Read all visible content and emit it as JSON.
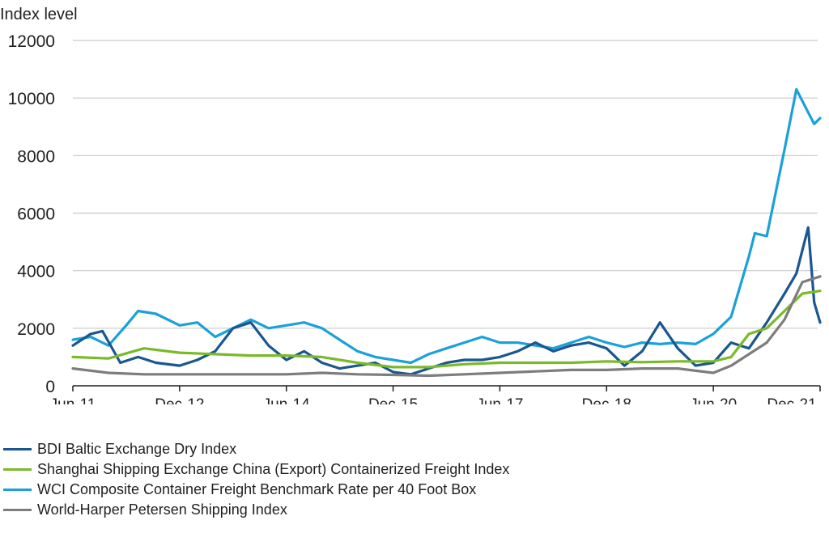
{
  "chart_data": {
    "type": "line",
    "ylabel": "Index level",
    "ylim": [
      0,
      12000
    ],
    "yticks": [
      0,
      2000,
      4000,
      6000,
      8000,
      10000,
      12000
    ],
    "x_range": [
      "2011-06",
      "2021-12"
    ],
    "x_ticks": [
      {
        "label": "Jun-11",
        "date": "2011-06"
      },
      {
        "label": "Dec-12",
        "date": "2012-12"
      },
      {
        "label": "Jun-14",
        "date": "2014-06"
      },
      {
        "label": "Dec-15",
        "date": "2015-12"
      },
      {
        "label": "Jun-17",
        "date": "2017-06"
      },
      {
        "label": "Dec-18",
        "date": "2018-12"
      },
      {
        "label": "Jun-20",
        "date": "2020-06"
      },
      {
        "label": "Dec-21",
        "date": "2021-12"
      }
    ],
    "gridlines": "horizontal",
    "legend_position": "bottom",
    "series": [
      {
        "name": "WCI Composite Container Freight Benchmark Rate per 40 Foot Box",
        "color": "#1ba1d8",
        "points": [
          [
            "2011-06",
            1600
          ],
          [
            "2011-09",
            1700
          ],
          [
            "2011-12",
            1400
          ],
          [
            "2012-03",
            2100
          ],
          [
            "2012-05",
            2600
          ],
          [
            "2012-08",
            2500
          ],
          [
            "2012-12",
            2100
          ],
          [
            "2013-03",
            2200
          ],
          [
            "2013-06",
            1700
          ],
          [
            "2013-09",
            2000
          ],
          [
            "2013-12",
            2300
          ],
          [
            "2014-03",
            2000
          ],
          [
            "2014-06",
            2100
          ],
          [
            "2014-09",
            2200
          ],
          [
            "2014-12",
            2000
          ],
          [
            "2015-03",
            1600
          ],
          [
            "2015-06",
            1200
          ],
          [
            "2015-09",
            1000
          ],
          [
            "2015-12",
            900
          ],
          [
            "2016-03",
            800
          ],
          [
            "2016-06",
            1100
          ],
          [
            "2016-09",
            1300
          ],
          [
            "2016-12",
            1500
          ],
          [
            "2017-03",
            1700
          ],
          [
            "2017-06",
            1500
          ],
          [
            "2017-09",
            1500
          ],
          [
            "2017-12",
            1400
          ],
          [
            "2018-03",
            1300
          ],
          [
            "2018-06",
            1500
          ],
          [
            "2018-09",
            1700
          ],
          [
            "2018-12",
            1500
          ],
          [
            "2019-03",
            1350
          ],
          [
            "2019-06",
            1500
          ],
          [
            "2019-09",
            1450
          ],
          [
            "2019-12",
            1500
          ],
          [
            "2020-03",
            1450
          ],
          [
            "2020-06",
            1800
          ],
          [
            "2020-09",
            2400
          ],
          [
            "2020-12",
            4500
          ],
          [
            "2021-01",
            5300
          ],
          [
            "2021-03",
            5200
          ],
          [
            "2021-06",
            8200
          ],
          [
            "2021-08",
            10300
          ],
          [
            "2021-10",
            9500
          ],
          [
            "2021-11",
            9100
          ],
          [
            "2021-12",
            9300
          ]
        ]
      },
      {
        "name": "BDI Baltic Exchange Dry Index",
        "color": "#1a5690",
        "points": [
          [
            "2011-06",
            1400
          ],
          [
            "2011-09",
            1800
          ],
          [
            "2011-11",
            1900
          ],
          [
            "2012-02",
            800
          ],
          [
            "2012-05",
            1000
          ],
          [
            "2012-08",
            800
          ],
          [
            "2012-12",
            700
          ],
          [
            "2013-03",
            900
          ],
          [
            "2013-06",
            1200
          ],
          [
            "2013-09",
            2000
          ],
          [
            "2013-12",
            2200
          ],
          [
            "2014-03",
            1400
          ],
          [
            "2014-06",
            900
          ],
          [
            "2014-09",
            1200
          ],
          [
            "2014-12",
            800
          ],
          [
            "2015-03",
            600
          ],
          [
            "2015-06",
            700
          ],
          [
            "2015-09",
            800
          ],
          [
            "2015-12",
            480
          ],
          [
            "2016-03",
            400
          ],
          [
            "2016-06",
            600
          ],
          [
            "2016-09",
            800
          ],
          [
            "2016-12",
            900
          ],
          [
            "2017-03",
            900
          ],
          [
            "2017-06",
            1000
          ],
          [
            "2017-09",
            1200
          ],
          [
            "2017-12",
            1500
          ],
          [
            "2018-03",
            1200
          ],
          [
            "2018-06",
            1400
          ],
          [
            "2018-09",
            1500
          ],
          [
            "2018-12",
            1300
          ],
          [
            "2019-03",
            700
          ],
          [
            "2019-06",
            1200
          ],
          [
            "2019-09",
            2200
          ],
          [
            "2019-12",
            1300
          ],
          [
            "2020-03",
            700
          ],
          [
            "2020-06",
            800
          ],
          [
            "2020-09",
            1500
          ],
          [
            "2020-12",
            1300
          ],
          [
            "2021-03",
            2200
          ],
          [
            "2021-06",
            3200
          ],
          [
            "2021-08",
            3900
          ],
          [
            "2021-10",
            5500
          ],
          [
            "2021-11",
            2900
          ],
          [
            "2021-12",
            2200
          ]
        ]
      },
      {
        "name": "Shanghai Shipping Exchange China (Export) Containerized Freight Index",
        "color": "#7ab929",
        "points": [
          [
            "2011-06",
            1000
          ],
          [
            "2011-12",
            950
          ],
          [
            "2012-06",
            1300
          ],
          [
            "2012-12",
            1150
          ],
          [
            "2013-06",
            1100
          ],
          [
            "2013-12",
            1050
          ],
          [
            "2014-06",
            1050
          ],
          [
            "2014-12",
            1000
          ],
          [
            "2015-06",
            800
          ],
          [
            "2015-12",
            650
          ],
          [
            "2016-06",
            650
          ],
          [
            "2016-12",
            750
          ],
          [
            "2017-06",
            800
          ],
          [
            "2017-12",
            800
          ],
          [
            "2018-06",
            800
          ],
          [
            "2018-12",
            850
          ],
          [
            "2019-06",
            820
          ],
          [
            "2019-12",
            850
          ],
          [
            "2020-06",
            850
          ],
          [
            "2020-09",
            1000
          ],
          [
            "2020-12",
            1800
          ],
          [
            "2021-03",
            2000
          ],
          [
            "2021-06",
            2600
          ],
          [
            "2021-09",
            3200
          ],
          [
            "2021-12",
            3300
          ]
        ]
      },
      {
        "name": "World-Harper Petersen Shipping Index",
        "color": "#7d7d7d",
        "points": [
          [
            "2011-06",
            600
          ],
          [
            "2011-12",
            450
          ],
          [
            "2012-06",
            400
          ],
          [
            "2012-12",
            400
          ],
          [
            "2013-06",
            400
          ],
          [
            "2013-12",
            400
          ],
          [
            "2014-06",
            400
          ],
          [
            "2014-12",
            450
          ],
          [
            "2015-06",
            400
          ],
          [
            "2015-12",
            380
          ],
          [
            "2016-06",
            350
          ],
          [
            "2016-12",
            400
          ],
          [
            "2017-06",
            450
          ],
          [
            "2017-12",
            500
          ],
          [
            "2018-06",
            550
          ],
          [
            "2018-12",
            550
          ],
          [
            "2019-06",
            600
          ],
          [
            "2019-12",
            600
          ],
          [
            "2020-06",
            450
          ],
          [
            "2020-09",
            700
          ],
          [
            "2020-12",
            1100
          ],
          [
            "2021-03",
            1500
          ],
          [
            "2021-06",
            2300
          ],
          [
            "2021-09",
            3600
          ],
          [
            "2021-12",
            3800
          ]
        ]
      }
    ]
  }
}
